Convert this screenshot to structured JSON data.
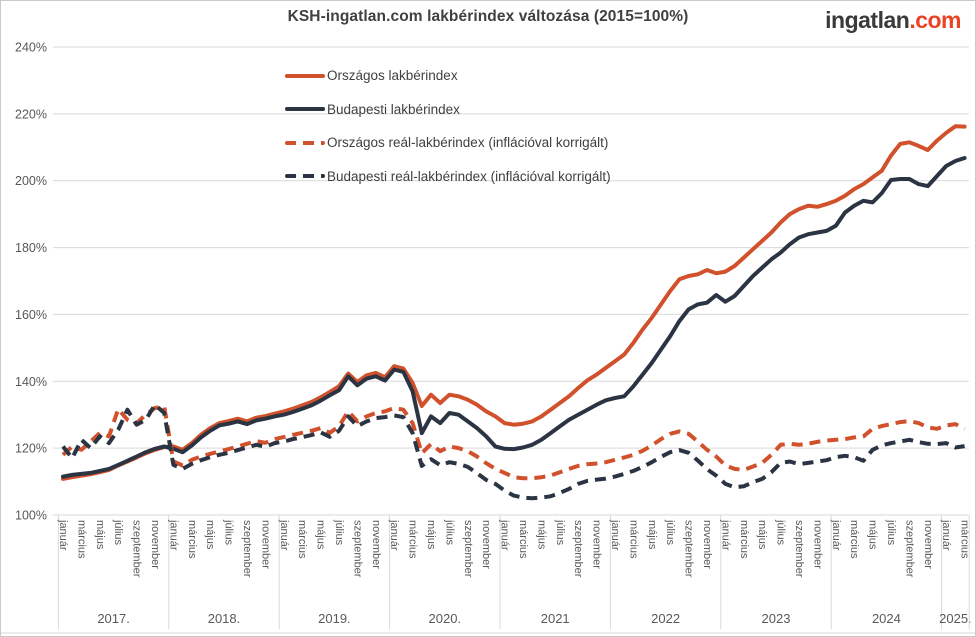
{
  "header": {
    "title": "KSH-ingatlan.com lakbérindex változása (2015=100%)",
    "logo_text": "ingatlan",
    "logo_suffix": ".com"
  },
  "colors": {
    "orange": "#d0512b",
    "navy": "#2a3442",
    "grid": "#d9d9d9",
    "axis_text": "#595959",
    "title_text": "#404040",
    "logo_dark": "#3a3a3a",
    "logo_red": "#e94325"
  },
  "chart_data": {
    "type": "line",
    "title": "KSH-ingatlan.com lakbérindex változása (2015=100%)",
    "grid": true,
    "legend_position": "top-left-inside",
    "x_axis": {
      "months_total": 99,
      "x_start": "2017. január",
      "x_end": "2025. március",
      "month_tick_labels": [
        "január",
        "március",
        "május",
        "július",
        "szeptember",
        "november"
      ],
      "year_labels": [
        "2017.",
        "2018.",
        "2019.",
        "2020.",
        "2021",
        "2022",
        "2023",
        "2024",
        "2025."
      ]
    },
    "y_axis": {
      "min": 100,
      "max": 240,
      "step": 20,
      "unit": "%",
      "tick_labels": [
        "100%",
        "120%",
        "140%",
        "160%",
        "180%",
        "200%",
        "220%",
        "240%"
      ]
    },
    "series": [
      {
        "name": "Országos lakbérindex",
        "color": "#d0512b",
        "dashed": false,
        "values": [
          110.8,
          111.3,
          111.8,
          112.2,
          112.8,
          113.5,
          114.8,
          116,
          117.2,
          118.5,
          119.5,
          120.3,
          120.5,
          119.5,
          121.5,
          124,
          126,
          127.5,
          128.1,
          128.8,
          128,
          129.1,
          129.6,
          130.3,
          131,
          131.8,
          132.8,
          133.8,
          135.2,
          136.8,
          138.5,
          142.3,
          139.8,
          141.8,
          142.5,
          141.2,
          144.5,
          143.8,
          139.5,
          132.6,
          136,
          133.5,
          136,
          135.5,
          134.5,
          133,
          131,
          129.5,
          127.5,
          127,
          127.3,
          128,
          129.5,
          131.5,
          133.5,
          135.5,
          138,
          140.3,
          142,
          144,
          146,
          148,
          151.5,
          155.5,
          159,
          163,
          167,
          170.5,
          171.5,
          172,
          173.3,
          172.3,
          172.8,
          174.5,
          177,
          179.5,
          182,
          184.5,
          187.5,
          190,
          191.5,
          192.5,
          192.2,
          193,
          194,
          195.5,
          197.5,
          199,
          201,
          203,
          207.5,
          211,
          211.5,
          210.4,
          209.2,
          212,
          214.3,
          216.3,
          216.2
        ]
      },
      {
        "name": "Budapesti lakbérindex",
        "color": "#2a3442",
        "dashed": false,
        "values": [
          111.5,
          112,
          112.3,
          112.6,
          113.2,
          113.8,
          115,
          116.2,
          117.5,
          118.8,
          119.8,
          120.5,
          119.8,
          118.8,
          120.8,
          123.2,
          125.2,
          126.8,
          127.3,
          128,
          127.2,
          128.3,
          128.8,
          129.5,
          130,
          130.8,
          131.8,
          132.8,
          134.2,
          135.8,
          137.3,
          141.5,
          138.8,
          140.8,
          141.5,
          140.2,
          143.5,
          142.8,
          137,
          124.5,
          129.5,
          127.5,
          130.5,
          130,
          128,
          126,
          123.5,
          120.5,
          119.8,
          119.7,
          120.2,
          121,
          122.5,
          124.5,
          126.5,
          128.5,
          130,
          131.5,
          133,
          134.3,
          135,
          135.5,
          138.5,
          142,
          145.5,
          149.5,
          153.5,
          158,
          161.5,
          163,
          163.5,
          165.8,
          163.8,
          165.5,
          168.5,
          171.5,
          174,
          176.5,
          178.5,
          181,
          183,
          184,
          184.5,
          185,
          186.5,
          190.5,
          192.5,
          194,
          193.5,
          196.3,
          200.2,
          200.5,
          200.5,
          199,
          198.4,
          201.4,
          204.4,
          205.9,
          206.8
        ]
      },
      {
        "name": "Országos reál-lakbérindex (inflációval korrigált)",
        "color": "#d0512b",
        "dashed": true,
        "values": [
          118,
          120.5,
          119.5,
          122,
          124.5,
          123.5,
          131.7,
          128.5,
          127.5,
          130,
          132,
          132.5,
          116,
          114.8,
          116.5,
          117.5,
          118.3,
          119,
          119.7,
          120.5,
          121.3,
          122.1,
          121.6,
          122.7,
          123.3,
          124,
          124.6,
          125.2,
          126,
          124.6,
          126.5,
          131,
          128,
          129.5,
          130.5,
          131,
          132,
          131.5,
          127.5,
          118.5,
          121.2,
          119.1,
          120.5,
          120,
          119.1,
          117.5,
          115.5,
          113.8,
          112.6,
          111.3,
          111,
          111,
          111.3,
          111.8,
          112.8,
          113.8,
          114.7,
          115.2,
          115.4,
          115.8,
          116.5,
          117.2,
          118,
          119.2,
          120.8,
          122.7,
          124.3,
          125,
          124.3,
          122,
          119.5,
          117.5,
          114.8,
          113.8,
          113.5,
          114.5,
          115.6,
          118,
          121,
          121.3,
          121,
          121.3,
          121.9,
          122.3,
          122.5,
          122.7,
          123.2,
          123.5,
          125.8,
          126.6,
          127.2,
          127.8,
          128.1,
          127.5,
          126.2,
          125.8,
          126.8,
          127.2,
          125.8
        ]
      },
      {
        "name": "Budapesti reál-lakbérindex (inflációval korrigált)",
        "color": "#2a3442",
        "dashed": true,
        "values": [
          120.5,
          117,
          122.5,
          120,
          123.5,
          121.5,
          125.5,
          131.5,
          127,
          128.5,
          133,
          130.5,
          115,
          113.8,
          115.3,
          116.4,
          117.3,
          118,
          118.6,
          119.4,
          120.2,
          121,
          120.4,
          121.5,
          122,
          122.7,
          123.3,
          123.9,
          124.7,
          123.4,
          125.2,
          129.5,
          126.6,
          128,
          129,
          129.3,
          129.8,
          129.3,
          124.5,
          114.7,
          116.7,
          114.9,
          115.8,
          115.3,
          114.4,
          112.5,
          110.5,
          109.3,
          107.3,
          105.8,
          105.2,
          105,
          105.2,
          105.6,
          106.6,
          107.8,
          109.3,
          110.2,
          110.6,
          110.9,
          111.5,
          112.3,
          113.2,
          114.4,
          115.8,
          117.4,
          118.8,
          119.4,
          118.6,
          116.3,
          113.7,
          111.8,
          109.3,
          108.3,
          108.6,
          109.8,
          110.8,
          112.8,
          115.6,
          116,
          115.2,
          115.6,
          116,
          116.4,
          117.3,
          117.7,
          117.3,
          116.2,
          119.5,
          120.8,
          121.5,
          122,
          122.5,
          121.8,
          121.3,
          121.2,
          121.5,
          120.2,
          120.6
        ]
      }
    ]
  }
}
